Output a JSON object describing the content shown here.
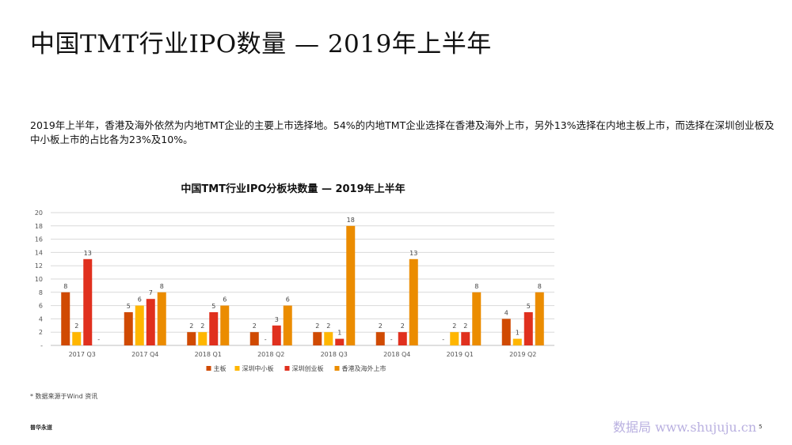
{
  "page": {
    "title": "中国TMT行业IPO数量 — 2019年上半年",
    "paragraph": "2019年上半年，香港及海外依然为内地TMT企业的主要上市选择地。54%的内地TMT企业选择在香港及海外上市，另外13%选择在内地主板上市，而选择在深圳创业板及中小板上市的占比各为23%及10%。",
    "footnote": "* 数据来源于Wind 资讯",
    "brand": "普华永道",
    "watermark": "数据局 www.shujuju.cn",
    "page_number": "5"
  },
  "chart_data": {
    "type": "bar",
    "title": "中国TMT行业IPO分板块数量 — 2019年上半年",
    "categories": [
      "2017 Q3",
      "2017 Q4",
      "2018 Q1",
      "2018 Q2",
      "2018 Q3",
      "2018 Q4",
      "2019 Q1",
      "2019 Q2"
    ],
    "series": [
      {
        "name": "主板",
        "color": "#d04a02",
        "values": [
          8,
          5,
          2,
          2,
          2,
          2,
          0,
          4
        ],
        "labels": [
          "8",
          "5",
          "2",
          "2",
          "2",
          "2",
          "-",
          "4"
        ]
      },
      {
        "name": "深圳中小板",
        "color": "#ffb600",
        "values": [
          2,
          6,
          2,
          0,
          2,
          0,
          2,
          1
        ],
        "labels": [
          "2",
          "6",
          "2",
          "-",
          "2",
          "-",
          "2",
          "1"
        ]
      },
      {
        "name": "深圳创业板",
        "color": "#e0301e",
        "values": [
          13,
          7,
          5,
          3,
          1,
          2,
          2,
          5
        ],
        "labels": [
          "13",
          "7",
          "5",
          "3",
          "1",
          "2",
          "2",
          "5"
        ]
      },
      {
        "name": "香港及海外上市",
        "color": "#eb8c00",
        "values": [
          0,
          8,
          6,
          6,
          18,
          13,
          8,
          8
        ],
        "labels": [
          "-",
          "8",
          "6",
          "6",
          "18",
          "13",
          "8",
          "8"
        ]
      }
    ],
    "y_ticks": [
      "-",
      "2",
      "4",
      "6",
      "8",
      "10",
      "12",
      "14",
      "16",
      "18",
      "20"
    ],
    "ylim": [
      0,
      20
    ],
    "grid": true,
    "legend_position": "bottom"
  }
}
